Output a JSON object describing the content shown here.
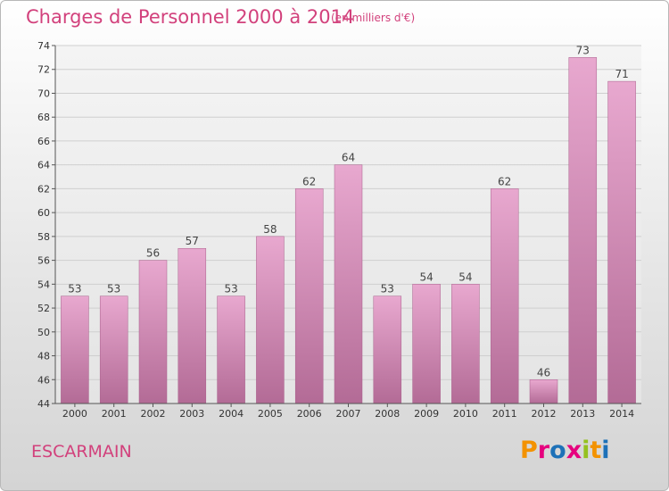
{
  "header": {
    "title": "Charges de Personnel 2000 à 2014",
    "unit": "(en milliers d'€)"
  },
  "footer": {
    "commune": "ESCARMAIN",
    "logo": "Proxiti"
  },
  "colors": {
    "accent": "#d2417c",
    "bar_top": "#e8a8cf",
    "bar_bottom": "#b36b96",
    "logo": [
      "#f39200",
      "#e6007e",
      "#1d71b8",
      "#e6007e",
      "#95c11f",
      "#f39200",
      "#1d71b8"
    ]
  },
  "chart_data": {
    "type": "bar",
    "title": "Charges de Personnel 2000 à 2014",
    "subtitle": "(en milliers d'€)",
    "xlabel": "",
    "ylabel": "",
    "categories": [
      "2000",
      "2001",
      "2002",
      "2003",
      "2004",
      "2005",
      "2006",
      "2007",
      "2008",
      "2009",
      "2010",
      "2011",
      "2012",
      "2013",
      "2014"
    ],
    "values": [
      53,
      53,
      56,
      57,
      53,
      58,
      62,
      64,
      53,
      54,
      54,
      62,
      46,
      73,
      71
    ],
    "ylim": [
      44,
      74
    ],
    "yticks": [
      44,
      46,
      48,
      50,
      52,
      54,
      56,
      58,
      60,
      62,
      64,
      66,
      68,
      70,
      72,
      74
    ],
    "grid": true,
    "legend": "none"
  }
}
